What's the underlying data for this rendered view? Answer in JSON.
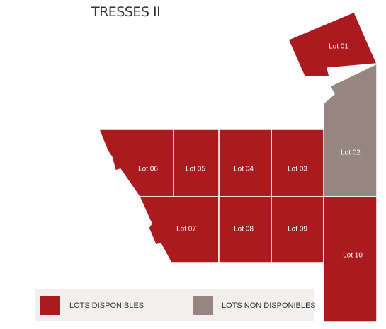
{
  "title": "TRESSES II",
  "colors": {
    "available": "#ab1a1f",
    "unavailable": "#958681"
  },
  "lots": [
    {
      "id": "lot-01",
      "label": "Lot 01",
      "status": "available"
    },
    {
      "id": "lot-02",
      "label": "Lot 02",
      "status": "unavailable"
    },
    {
      "id": "lot-03",
      "label": "Lot 03",
      "status": "available"
    },
    {
      "id": "lot-04",
      "label": "Lot 04",
      "status": "available"
    },
    {
      "id": "lot-05",
      "label": "Lot 05",
      "status": "available"
    },
    {
      "id": "lot-06",
      "label": "Lot 06",
      "status": "available"
    },
    {
      "id": "lot-07",
      "label": "Lot 07",
      "status": "available"
    },
    {
      "id": "lot-08",
      "label": "Lot 08",
      "status": "available"
    },
    {
      "id": "lot-09",
      "label": "Lot 09",
      "status": "available"
    },
    {
      "id": "lot-10",
      "label": "Lot 10",
      "status": "available"
    }
  ],
  "legend": {
    "available_label": "LOTS DISPONIBLES",
    "unavailable_label": "LOTS NON DISPONIBLES"
  }
}
